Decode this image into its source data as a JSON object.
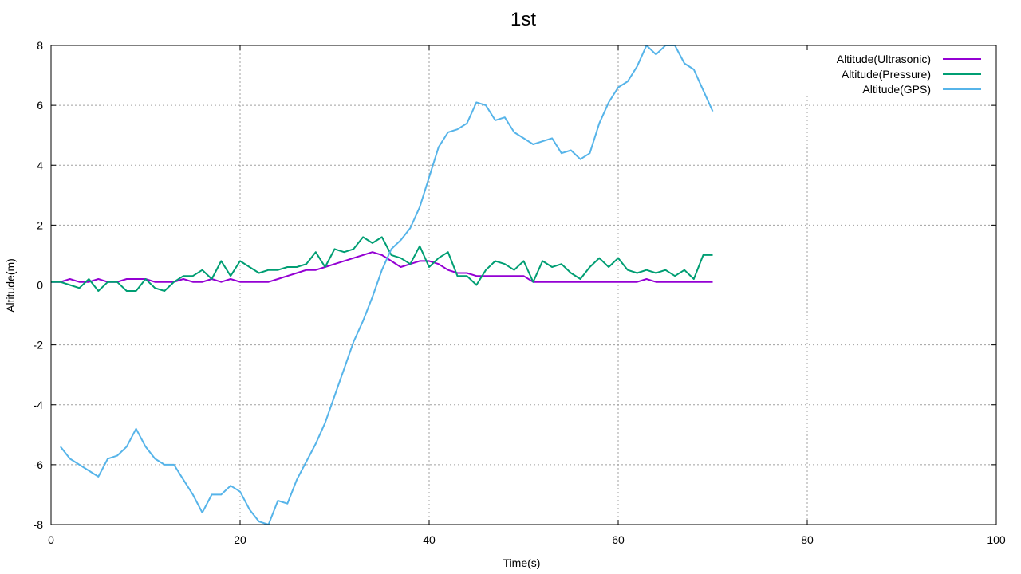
{
  "chart_data": {
    "type": "line",
    "title": "1st",
    "xlabel": "Time(s)",
    "ylabel": "Altitude(m)",
    "xlim": [
      0,
      100
    ],
    "ylim": [
      -8,
      8
    ],
    "xticks": [
      0,
      20,
      40,
      60,
      80,
      100
    ],
    "yticks": [
      -8,
      -6,
      -4,
      -2,
      0,
      2,
      4,
      6,
      8
    ],
    "grid": true,
    "legend_position": "top-right",
    "series": [
      {
        "name": "Altitude(Ultrasonic)",
        "color": "#9400d3",
        "x": [
          0,
          1,
          2,
          3,
          4,
          5,
          6,
          7,
          8,
          9,
          10,
          11,
          12,
          13,
          14,
          15,
          16,
          17,
          18,
          19,
          20,
          21,
          22,
          23,
          24,
          25,
          26,
          27,
          28,
          29,
          30,
          31,
          32,
          33,
          34,
          35,
          36,
          37,
          38,
          39,
          40,
          41,
          42,
          43,
          44,
          45,
          46,
          47,
          48,
          49,
          50,
          51,
          52,
          53,
          54,
          55,
          56,
          57,
          58,
          59,
          60,
          61,
          62,
          63,
          64,
          65,
          66,
          67,
          68,
          69,
          70
        ],
        "y": [
          0.1,
          0.1,
          0.2,
          0.1,
          0.1,
          0.2,
          0.1,
          0.1,
          0.2,
          0.2,
          0.2,
          0.1,
          0.1,
          0.1,
          0.2,
          0.1,
          0.1,
          0.2,
          0.1,
          0.2,
          0.1,
          0.1,
          0.1,
          0.1,
          0.2,
          0.3,
          0.4,
          0.5,
          0.5,
          0.6,
          0.7,
          0.8,
          0.9,
          1.0,
          1.1,
          1.0,
          0.8,
          0.6,
          0.7,
          0.8,
          0.8,
          0.7,
          0.5,
          0.4,
          0.4,
          0.3,
          0.3,
          0.3,
          0.3,
          0.3,
          0.3,
          0.1,
          0.1,
          0.1,
          0.1,
          0.1,
          0.1,
          0.1,
          0.1,
          0.1,
          0.1,
          0.1,
          0.1,
          0.2,
          0.1,
          0.1,
          0.1,
          0.1,
          0.1,
          0.1,
          0.1
        ]
      },
      {
        "name": "Altitude(Pressure)",
        "color": "#009e73",
        "x": [
          0,
          1,
          2,
          3,
          4,
          5,
          6,
          7,
          8,
          9,
          10,
          11,
          12,
          13,
          14,
          15,
          16,
          17,
          18,
          19,
          20,
          21,
          22,
          23,
          24,
          25,
          26,
          27,
          28,
          29,
          30,
          31,
          32,
          33,
          34,
          35,
          36,
          37,
          38,
          39,
          40,
          41,
          42,
          43,
          44,
          45,
          46,
          47,
          48,
          49,
          50,
          51,
          52,
          53,
          54,
          55,
          56,
          57,
          58,
          59,
          60,
          61,
          62,
          63,
          64,
          65,
          66,
          67,
          68,
          69,
          70
        ],
        "y": [
          0.1,
          0.1,
          0.0,
          -0.1,
          0.2,
          -0.2,
          0.1,
          0.1,
          -0.2,
          -0.2,
          0.2,
          -0.1,
          -0.2,
          0.1,
          0.3,
          0.3,
          0.5,
          0.2,
          0.8,
          0.3,
          0.8,
          0.6,
          0.4,
          0.5,
          0.5,
          0.6,
          0.6,
          0.7,
          1.1,
          0.6,
          1.2,
          1.1,
          1.2,
          1.6,
          1.4,
          1.6,
          1.0,
          0.9,
          0.7,
          1.3,
          0.6,
          0.9,
          1.1,
          0.3,
          0.3,
          0.0,
          0.5,
          0.8,
          0.7,
          0.5,
          0.8,
          0.1,
          0.8,
          0.6,
          0.7,
          0.4,
          0.2,
          0.6,
          0.9,
          0.6,
          0.9,
          0.5,
          0.4,
          0.5,
          0.4,
          0.5,
          0.3,
          0.5,
          0.2,
          1.0,
          1.0
        ]
      },
      {
        "name": "Altitude(GPS)",
        "color": "#56b4e9",
        "x": [
          1,
          2,
          3,
          4,
          5,
          6,
          7,
          8,
          9,
          10,
          11,
          12,
          13,
          14,
          15,
          16,
          17,
          18,
          19,
          20,
          21,
          22,
          23,
          24,
          25,
          26,
          27,
          28,
          29,
          30,
          31,
          32,
          33,
          34,
          35,
          36,
          37,
          38,
          39,
          40,
          41,
          42,
          43,
          44,
          45,
          46,
          47,
          48,
          49,
          50,
          51,
          52,
          53,
          54,
          55,
          56,
          57,
          58,
          59,
          60,
          61,
          62,
          63,
          64,
          65,
          66,
          67,
          68,
          69,
          70
        ],
        "y": [
          -5.4,
          -5.8,
          -6.0,
          -6.2,
          -6.4,
          -5.8,
          -5.7,
          -5.4,
          -4.8,
          -5.4,
          -5.8,
          -6.0,
          -6.0,
          -6.5,
          -7.0,
          -7.6,
          -7.0,
          -7.0,
          -6.7,
          -6.9,
          -7.5,
          -7.9,
          -8.0,
          -7.2,
          -7.3,
          -6.5,
          -5.9,
          -5.3,
          -4.6,
          -3.7,
          -2.8,
          -1.9,
          -1.2,
          -0.4,
          0.5,
          1.2,
          1.5,
          1.9,
          2.6,
          3.6,
          4.6,
          5.1,
          5.2,
          5.4,
          6.1,
          6.0,
          5.5,
          5.6,
          5.1,
          4.9,
          4.7,
          4.8,
          4.9,
          4.4,
          4.5,
          4.2,
          4.4,
          5.4,
          6.1,
          6.6,
          6.8,
          7.3,
          8.0,
          7.7,
          8.0,
          8.0,
          7.4,
          7.2,
          6.5,
          5.8
        ]
      }
    ]
  }
}
